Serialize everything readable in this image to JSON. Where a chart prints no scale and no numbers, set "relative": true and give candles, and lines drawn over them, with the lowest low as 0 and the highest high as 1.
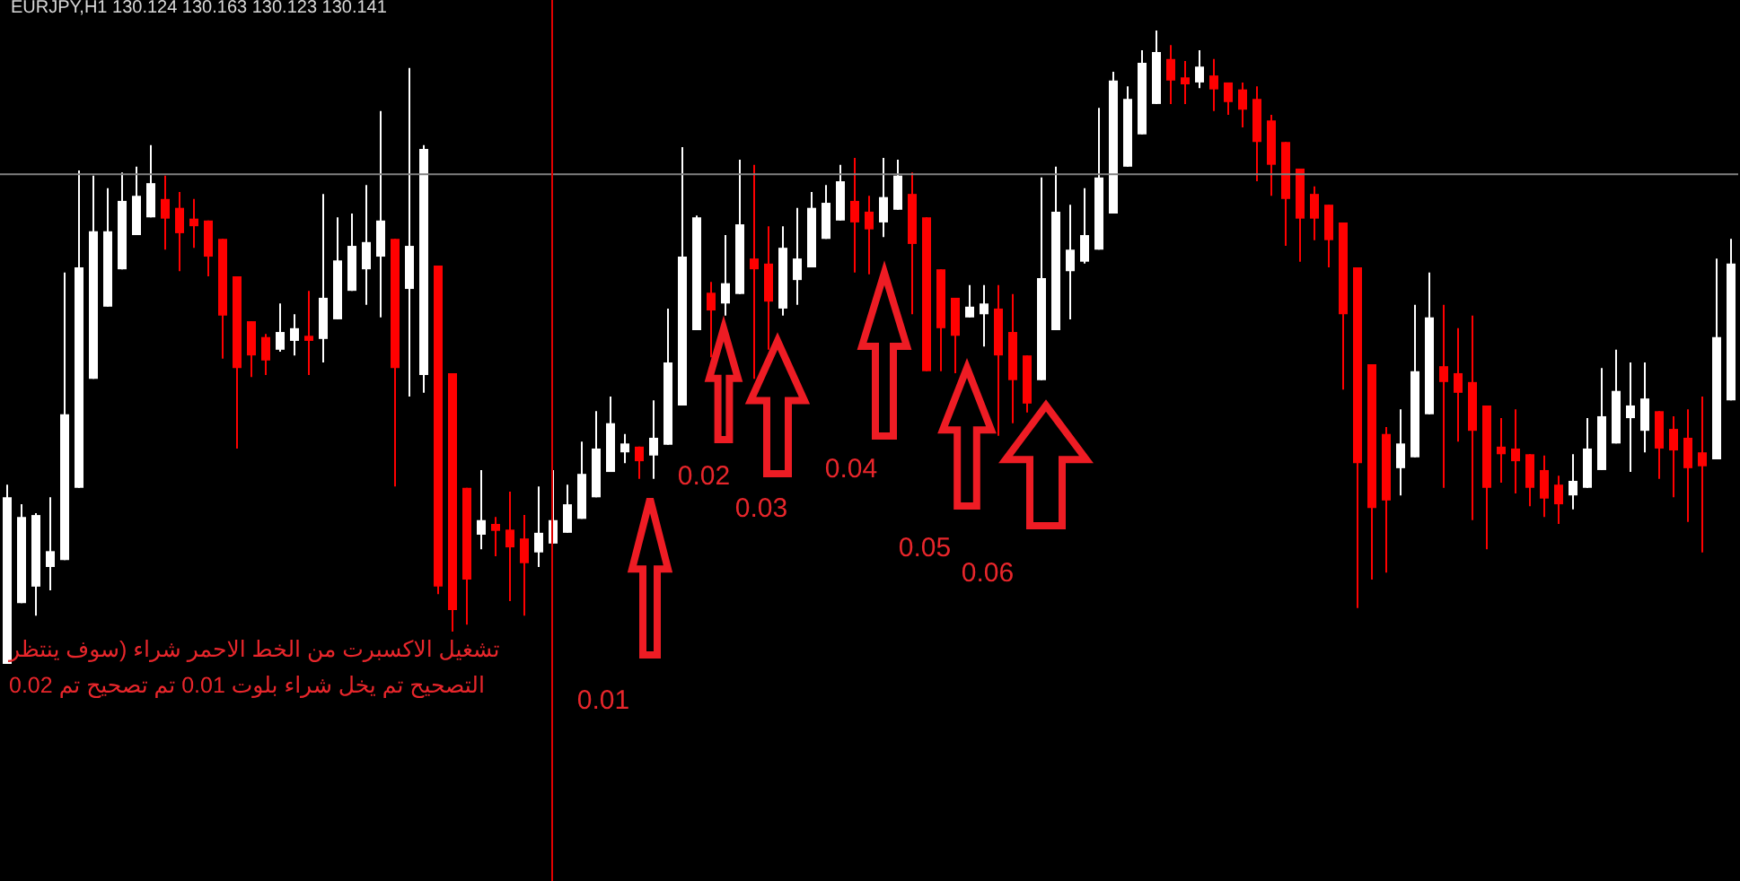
{
  "chart_data": {
    "type": "candlestick",
    "relative": true,
    "title": "EURJPY,H1  130.124 130.163 130.123 130.141",
    "categories": [
      null,
      null,
      null,
      null,
      null,
      null,
      null,
      null,
      null,
      null,
      null,
      null,
      null,
      null,
      null,
      null,
      null,
      null,
      null,
      null,
      null,
      null,
      null,
      null,
      null,
      null,
      null,
      null,
      null,
      null,
      null,
      null,
      null,
      null,
      null,
      null,
      null,
      null,
      null,
      null,
      null,
      null,
      null,
      null,
      null,
      null,
      null,
      null,
      null,
      null,
      null,
      null,
      null,
      null,
      null,
      null,
      null,
      null,
      null,
      null,
      null,
      null,
      null,
      null,
      null,
      null,
      null,
      null,
      null,
      null,
      null,
      null,
      null,
      null,
      null,
      null,
      null,
      null,
      null,
      null,
      null,
      null,
      null,
      null,
      null,
      null,
      null,
      null,
      null,
      null,
      null,
      null,
      null,
      null,
      null,
      null,
      null,
      null,
      null,
      null,
      null,
      null,
      null,
      null,
      null,
      null,
      null,
      null,
      null,
      null,
      null,
      null,
      null,
      null,
      null,
      null,
      null,
      null,
      null,
      null,
      null
    ],
    "ohlc": [
      [
        0,
        0.283,
        0,
        0.263
      ],
      [
        0.096,
        0.252,
        0.096,
        0.232
      ],
      [
        0.122,
        0.238,
        0.076,
        0.235
      ],
      [
        0.153,
        0.263,
        0.116,
        0.178
      ],
      [
        0.164,
        0.618,
        0.164,
        0.394
      ],
      [
        0.278,
        0.779,
        0.278,
        0.626
      ],
      [
        0.45,
        0.771,
        0.45,
        0.683
      ],
      [
        0.564,
        0.751,
        0.564,
        0.683
      ],
      [
        0.623,
        0.776,
        0.623,
        0.731
      ],
      [
        0.677,
        0.785,
        0.677,
        0.739
      ],
      [
        0.705,
        0.819,
        0.705,
        0.759
      ],
      [
        0.734,
        0.771,
        0.654,
        0.703
      ],
      [
        0.72,
        0.745,
        0.62,
        0.68
      ],
      [
        0.703,
        0.734,
        0.657,
        0.691
      ],
      [
        0.7,
        0.7,
        0.612,
        0.643
      ],
      [
        0.671,
        0.671,
        0.482,
        0.55
      ],
      [
        0.612,
        0.612,
        0.34,
        0.467
      ],
      [
        0.541,
        0.541,
        0.453,
        0.487
      ],
      [
        0.516,
        0.521,
        0.456,
        0.479
      ],
      [
        0.496,
        0.569,
        0.493,
        0.524
      ],
      [
        0.51,
        0.552,
        0.487,
        0.53
      ],
      [
        0.518,
        0.589,
        0.456,
        0.51
      ],
      [
        0.513,
        0.742,
        0.476,
        0.578
      ],
      [
        0.544,
        0.705,
        0.544,
        0.637
      ],
      [
        0.589,
        0.711,
        0.589,
        0.66
      ],
      [
        0.623,
        0.756,
        0.567,
        0.666
      ],
      [
        0.643,
        0.873,
        0.547,
        0.7
      ],
      [
        0.671,
        0.671,
        0.28,
        0.467
      ],
      [
        0.592,
        0.941,
        0.422,
        0.66
      ],
      [
        0.456,
        0.819,
        0.428,
        0.813
      ],
      [
        0.629,
        0.629,
        0.11,
        0.122
      ],
      [
        0.459,
        0.459,
        0.051,
        0.085
      ],
      [
        0.278,
        0.278,
        0.062,
        0.133
      ],
      [
        0.204,
        0.306,
        0.181,
        0.227
      ],
      [
        0.221,
        0.232,
        0.17,
        0.21
      ],
      [
        0.212,
        0.272,
        0.099,
        0.184
      ],
      [
        0.198,
        0.235,
        0.076,
        0.159
      ],
      [
        0.176,
        0.28,
        0.153,
        0.207
      ],
      [
        0.19,
        0.306,
        0.19,
        0.227
      ],
      [
        0.207,
        0.283,
        0.207,
        0.252
      ],
      [
        0.229,
        0.351,
        0.229,
        0.3
      ],
      [
        0.263,
        0.399,
        0.263,
        0.34
      ],
      [
        0.303,
        0.422,
        0.303,
        0.38
      ],
      [
        0.334,
        0.363,
        0.317,
        0.348
      ],
      [
        0.343,
        0.343,
        0.292,
        0.32
      ],
      [
        0.329,
        0.416,
        0.292,
        0.357
      ],
      [
        0.346,
        0.561,
        0.346,
        0.476
      ],
      [
        0.408,
        0.816,
        0.408,
        0.643
      ],
      [
        0.527,
        0.708,
        0.527,
        0.705
      ],
      [
        0.586,
        0.603,
        0.484,
        0.558
      ],
      [
        0.569,
        0.677,
        0.55,
        0.601
      ],
      [
        0.584,
        0.796,
        0.584,
        0.694
      ],
      [
        0.64,
        0.788,
        0.45,
        0.623
      ],
      [
        0.632,
        0.691,
        0.496,
        0.572
      ],
      [
        0.561,
        0.691,
        0.55,
        0.657
      ],
      [
        0.606,
        0.72,
        0.567,
        0.64
      ],
      [
        0.626,
        0.745,
        0.626,
        0.72
      ],
      [
        0.671,
        0.756,
        0.671,
        0.728
      ],
      [
        0.7,
        0.788,
        0.7,
        0.762
      ],
      [
        0.731,
        0.799,
        0.618,
        0.697
      ],
      [
        0.714,
        0.739,
        0.615,
        0.686
      ],
      [
        0.697,
        0.799,
        0.674,
        0.737
      ],
      [
        0.717,
        0.796,
        0.717,
        0.771
      ],
      [
        0.742,
        0.776,
        0.552,
        0.663
      ],
      [
        0.705,
        0.705,
        0.462,
        0.462
      ],
      [
        0.623,
        0.623,
        0.462,
        0.53
      ],
      [
        0.578,
        0.578,
        0.459,
        0.518
      ],
      [
        0.547,
        0.598,
        0.547,
        0.564
      ],
      [
        0.552,
        0.598,
        0.501,
        0.569
      ],
      [
        0.561,
        0.598,
        0.36,
        0.487
      ],
      [
        0.524,
        0.584,
        0.38,
        0.448
      ],
      [
        0.487,
        0.487,
        0.397,
        0.411
      ],
      [
        0.448,
        0.768,
        0.448,
        0.609
      ],
      [
        0.527,
        0.785,
        0.527,
        0.714
      ],
      [
        0.62,
        0.725,
        0.544,
        0.654
      ],
      [
        0.635,
        0.751,
        0.632,
        0.677
      ],
      [
        0.654,
        0.878,
        0.654,
        0.768
      ],
      [
        0.711,
        0.935,
        0.711,
        0.921
      ],
      [
        0.785,
        0.912,
        0.785,
        0.892
      ],
      [
        0.836,
        0.969,
        0.836,
        0.949
      ],
      [
        0.884,
        1,
        0.884,
        0.966
      ],
      [
        0.955,
        0.977,
        0.884,
        0.921
      ],
      [
        0.926,
        0.952,
        0.884,
        0.915
      ],
      [
        0.918,
        0.969,
        0.909,
        0.943
      ],
      [
        0.929,
        0.955,
        0.873,
        0.907
      ],
      [
        0.918,
        0.918,
        0.867,
        0.887
      ],
      [
        0.907,
        0.918,
        0.847,
        0.875
      ],
      [
        0.892,
        0.912,
        0.762,
        0.824
      ],
      [
        0.858,
        0.867,
        0.739,
        0.788
      ],
      [
        0.824,
        0.824,
        0.66,
        0.734
      ],
      [
        0.782,
        0.782,
        0.635,
        0.703
      ],
      [
        0.742,
        0.754,
        0.669,
        0.703
      ],
      [
        0.725,
        0.725,
        0.626,
        0.669
      ],
      [
        0.697,
        0.697,
        0.433,
        0.552
      ],
      [
        0.626,
        0.626,
        0.088,
        0.317
      ],
      [
        0.473,
        0.473,
        0.133,
        0.246
      ],
      [
        0.363,
        0.374,
        0.144,
        0.258
      ],
      [
        0.309,
        0.402,
        0.266,
        0.348
      ],
      [
        0.326,
        0.567,
        0.326,
        0.462
      ],
      [
        0.394,
        0.618,
        0.394,
        0.547
      ],
      [
        0.47,
        0.567,
        0.278,
        0.445
      ],
      [
        0.459,
        0.53,
        0.351,
        0.428
      ],
      [
        0.445,
        0.55,
        0.227,
        0.368
      ],
      [
        0.408,
        0.408,
        0.181,
        0.278
      ],
      [
        0.343,
        0.388,
        0.286,
        0.331
      ],
      [
        0.34,
        0.402,
        0.269,
        0.32
      ],
      [
        0.331,
        0.331,
        0.249,
        0.278
      ],
      [
        0.306,
        0.329,
        0.232,
        0.261
      ],
      [
        0.283,
        0.297,
        0.221,
        0.252
      ],
      [
        0.266,
        0.331,
        0.244,
        0.289
      ],
      [
        0.278,
        0.388,
        0.278,
        0.34
      ],
      [
        0.306,
        0.467,
        0.306,
        0.391
      ],
      [
        0.348,
        0.496,
        0.348,
        0.431
      ],
      [
        0.388,
        0.476,
        0.303,
        0.408
      ],
      [
        0.368,
        0.476,
        0.334,
        0.419
      ],
      [
        0.399,
        0.399,
        0.292,
        0.34
      ],
      [
        0.371,
        0.391,
        0.263,
        0.337
      ],
      [
        0.357,
        0.402,
        0.224,
        0.309
      ],
      [
        0.334,
        0.422,
        0.176,
        0.312
      ],
      [
        0.323,
        0.64,
        0.323,
        0.516
      ],
      [
        0.416,
        0.671,
        0.416,
        0.632
      ]
    ],
    "colors": [
      "#ffffff",
      "#ffffff",
      "#ffffff",
      "#ffffff",
      "#ffffff",
      "#ffffff",
      "#ffffff",
      "#ffffff",
      "#ffffff",
      "#ffffff",
      "#ffffff",
      "#ff0000",
      "#ff0000",
      "#ff0000",
      "#ff0000",
      "#ff0000",
      "#ff0000",
      "#ff0000",
      "#ff0000",
      "#ffffff",
      "#ffffff",
      "#ff0000",
      "#ffffff",
      "#ffffff",
      "#ffffff",
      "#ffffff",
      "#ffffff",
      "#ff0000",
      "#ffffff",
      "#ffffff",
      "#ff0000",
      "#ff0000",
      "#ff0000",
      "#ffffff",
      "#ff0000",
      "#ff0000",
      "#ff0000",
      "#ffffff",
      "#ffffff",
      "#ffffff",
      "#ffffff",
      "#ffffff",
      "#ffffff",
      "#ffffff",
      "#ff0000",
      "#ffffff",
      "#ffffff",
      "#ffffff",
      "#ffffff",
      "#ff0000",
      "#ffffff",
      "#ffffff",
      "#ff0000",
      "#ff0000",
      "#ffffff",
      "#ffffff",
      "#ffffff",
      "#ffffff",
      "#ffffff",
      "#ff0000",
      "#ff0000",
      "#ffffff",
      "#ffffff",
      "#ff0000",
      "#ff0000",
      "#ff0000",
      "#ff0000",
      "#ffffff",
      "#ffffff",
      "#ff0000",
      "#ff0000",
      "#ff0000",
      "#ffffff",
      "#ffffff",
      "#ffffff",
      "#ffffff",
      "#ffffff",
      "#ffffff",
      "#ffffff",
      "#ffffff",
      "#ffffff",
      "#ff0000",
      "#ff0000",
      "#ffffff",
      "#ff0000",
      "#ff0000",
      "#ff0000",
      "#ff0000",
      "#ff0000",
      "#ff0000",
      "#ff0000",
      "#ff0000",
      "#ff0000",
      "#ff0000",
      "#ff0000",
      "#ff0000",
      "#ff0000",
      "#ffffff",
      "#ffffff",
      "#ffffff",
      "#ff0000",
      "#ff0000",
      "#ff0000",
      "#ff0000",
      "#ff0000",
      "#ff0000",
      "#ff0000",
      "#ff0000",
      "#ff0000",
      "#ffffff",
      "#ffffff",
      "#ffffff",
      "#ffffff",
      "#ffffff",
      "#ffffff",
      "#ff0000",
      "#ff0000",
      "#ff0000",
      "#ff0000",
      "#ffffff",
      "#ffffff"
    ],
    "ref_lines": [
      {
        "axis": "y",
        "value": 0.773,
        "color": "#808080"
      }
    ],
    "annotations": [
      "0.01",
      "0.02",
      "0.03",
      "0.04",
      "0.05",
      "0.06",
      "تشغيل الاكسبرت من الخط الاحمر شراء (سوف ينتظر",
      "التصحيح تم يخل شراء بلوت 0.01 تم تصحيح تم 0.02"
    ]
  }
}
